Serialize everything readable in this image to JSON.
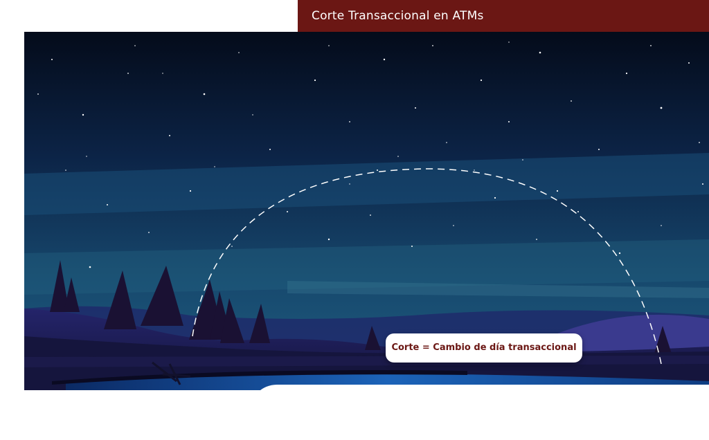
{
  "header": {
    "title": "Corte Transaccional en ATMs",
    "background_color": "#6b1714"
  },
  "scene": {
    "description_icon": "night-sky-landscape",
    "sky_top_color": "#050d1e",
    "sky_bottom_color": "#1d5a7c",
    "hill_color": "#17163f",
    "tree_color": "#1a1133",
    "arc_color": "#ffffff"
  },
  "label": {
    "text": "Corte = Cambio de día transaccional",
    "text_color": "#6b1714"
  }
}
